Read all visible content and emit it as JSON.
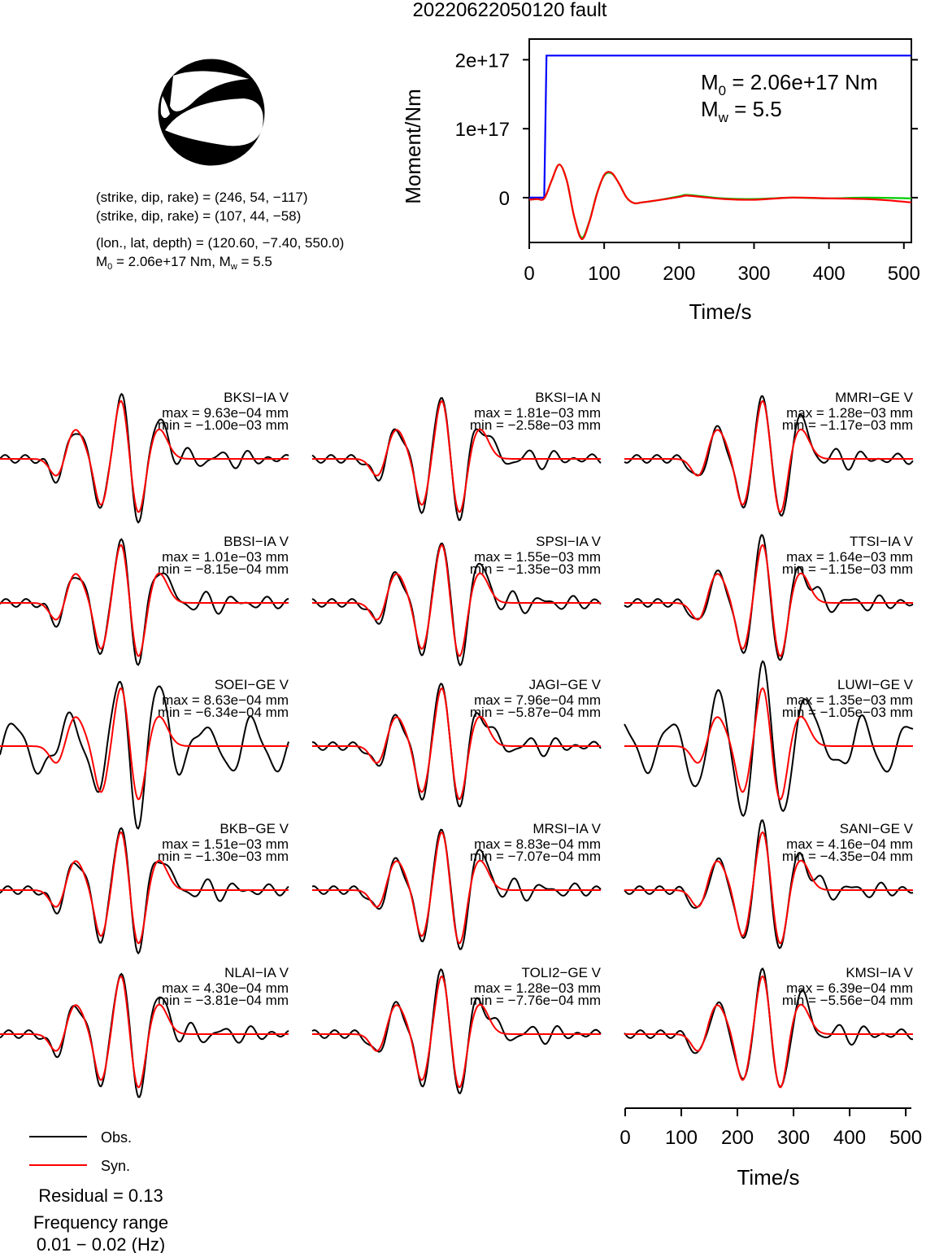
{
  "title": "20220622050120 fault",
  "mechanism": {
    "line1": "(strike, dip, rake) = (246, 54, −117)",
    "line2": "(strike, dip, rake) = (107, 44, −58)",
    "location": "(lon., lat, depth) = (120.60, −7.40, 550.0)",
    "m0_label": "M",
    "m0_sub": "0",
    "m0_value": " = 2.06e+17 Nm, M",
    "mw_sub": "w",
    "mw_value": " = 5.5"
  },
  "moment_chart": {
    "ylabel": "Moment/Nm",
    "xlabel": "Time/s",
    "m0_prefix": "M",
    "m0_sub": "0",
    "m0_text": " = 2.06e+17 Nm",
    "mw_prefix": "M",
    "mw_sub": "w",
    "mw_text": " = 5.5",
    "ytick_labels": [
      "0",
      "1e+17",
      "2e+17"
    ],
    "xtick_labels": [
      "0",
      "100",
      "200",
      "300",
      "400",
      "500"
    ]
  },
  "chart_data": [
    {
      "type": "line",
      "id": "moment",
      "xlim": [
        0,
        510
      ],
      "ylim": [
        -6.5e+16,
        2.3e+17
      ],
      "xticks": [
        0,
        100,
        200,
        300,
        400,
        500
      ],
      "yticks": [
        0,
        1e+17,
        2e+17
      ],
      "series": [
        {
          "color": "#0000ff",
          "x": [
            0,
            20,
            23,
            510
          ],
          "y": [
            0,
            0,
            2.06e+17,
            2.06e+17
          ]
        },
        {
          "color": "#00cc00",
          "x": [
            0,
            10,
            20,
            30,
            40,
            50,
            60,
            70,
            80,
            90,
            100,
            110,
            120,
            130,
            140,
            150,
            170,
            200,
            210,
            230,
            260,
            300,
            350,
            400,
            450,
            510
          ],
          "y": [
            -3000000000000000.0,
            -2000000000000000.0,
            -1000000000000000.0,
            2.5e+16,
            4.8e+16,
            2.5e+16,
            -2.8e+16,
            -5.8e+16,
            -3.5e+16,
            5000000000000000.0,
            3.2e+16,
            3.5e+16,
            2e+16,
            0,
            -8000000000000000.0,
            -7000000000000000.0,
            -4000000000000000.0,
            2000000000000000.0,
            4000000000000000.0,
            2000000000000000.0,
            -1000000000000000.0,
            -2000000000000000.0,
            0,
            -1000000000000000.0,
            0,
            -1000000000000000.0
          ]
        },
        {
          "color": "#ff0000",
          "x": [
            0,
            10,
            20,
            30,
            40,
            50,
            60,
            70,
            80,
            90,
            100,
            110,
            120,
            130,
            140,
            150,
            170,
            200,
            210,
            230,
            260,
            300,
            350,
            400,
            450,
            480,
            510
          ],
          "y": [
            -3000000000000000.0,
            -2000000000000000.0,
            -1000000000000000.0,
            2.5e+16,
            4.8e+16,
            2.5e+16,
            -2.8e+16,
            -6e+16,
            -3.6e+16,
            4000000000000000.0,
            3.3e+16,
            3.6e+16,
            2e+16,
            0,
            -8000000000000000.0,
            -7000000000000000.0,
            -4000000000000000.0,
            1000000000000000.0,
            3000000000000000.0,
            1000000000000000.0,
            -2000000000000000.0,
            -3000000000000000.0,
            0,
            -1000000000000000.0,
            -2000000000000000.0,
            -4000000000000000.0,
            -7000000000000000.0
          ]
        }
      ]
    },
    {
      "type": "line",
      "id": "waveforms",
      "xlim": [
        0,
        510
      ],
      "xticks": [
        0,
        100,
        200,
        300,
        400,
        500
      ],
      "xlabel": "Time/s",
      "traces": [
        {
          "station": "BKSI−IA V",
          "max": "max = 9.63e−04 mm",
          "min": "min = −1.00e−03 mm"
        },
        {
          "station": "BKSI−IA N",
          "max": "max = 1.81e−03 mm",
          "min": "min = −2.58e−03 mm"
        },
        {
          "station": "MMRI−GE V",
          "max": "max = 1.28e−03 mm",
          "min": "min = −1.17e−03 mm"
        },
        {
          "station": "BBSI−IA V",
          "max": "max = 1.01e−03 mm",
          "min": "min = −8.15e−04 mm"
        },
        {
          "station": "SPSI−IA V",
          "max": "max = 1.55e−03 mm",
          "min": "min = −1.35e−03 mm"
        },
        {
          "station": "TTSI−IA V",
          "max": "max = 1.64e−03 mm",
          "min": "min = −1.15e−03 mm"
        },
        {
          "station": "SOEI−GE V",
          "max": "max = 8.63e−04 mm",
          "min": "min = −6.34e−04 mm"
        },
        {
          "station": "JAGI−GE V",
          "max": "max = 7.96e−04 mm",
          "min": "min = −5.87e−04 mm"
        },
        {
          "station": "LUWI−GE V",
          "max": "max = 1.35e−03 mm",
          "min": "min = −1.05e−03 mm"
        },
        {
          "station": "BKB−GE V",
          "max": "max = 1.51e−03 mm",
          "min": "min = −1.30e−03 mm"
        },
        {
          "station": "MRSI−IA V",
          "max": "max = 8.83e−04 mm",
          "min": "min = −7.07e−04 mm"
        },
        {
          "station": "SANI−GE V",
          "max": "max = 4.16e−04 mm",
          "min": "min = −4.35e−04 mm"
        },
        {
          "station": "NLAI−IA V",
          "max": "max = 4.30e−04 mm",
          "min": "min = −3.81e−04 mm"
        },
        {
          "station": "TOLI2−GE V",
          "max": "max = 1.28e−03 mm",
          "min": "min = −7.76e−04 mm"
        },
        {
          "station": "KMSI−IA V",
          "max": "max = 6.39e−04 mm",
          "min": "min = −5.56e−04 mm"
        }
      ]
    }
  ],
  "legend": {
    "obs": "Obs.",
    "syn": "Syn.",
    "obs_color": "#000000",
    "syn_color": "#ff0000"
  },
  "footer": {
    "residual": "Residual = 0.13",
    "freq_title": "Frequency range",
    "freq_range": "0.01 − 0.02 (Hz)"
  }
}
